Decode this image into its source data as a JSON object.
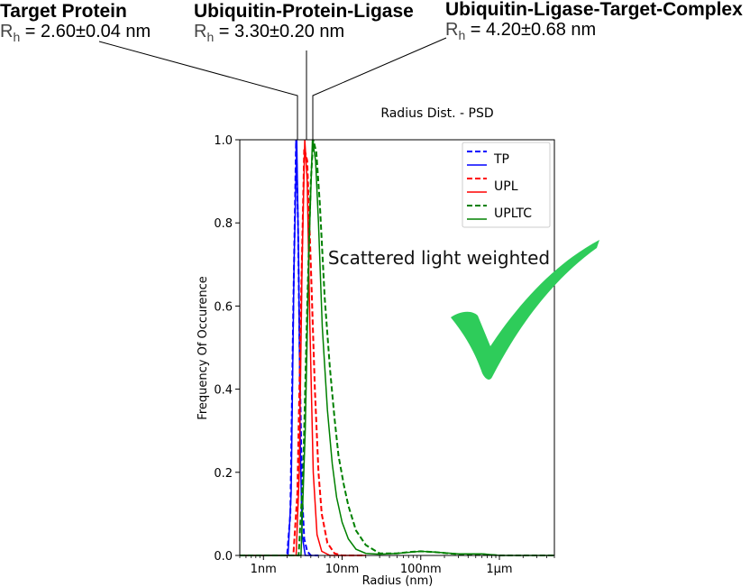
{
  "header_labels": [
    {
      "name": "Target Protein",
      "symbol": "R",
      "subscript": "h",
      "value": " = 2.60±0.04 nm"
    },
    {
      "name": "Ubiquitin-Protein-Ligase",
      "symbol": "R",
      "subscript": "h",
      "value": " = 3.30±0.20 nm"
    },
    {
      "name": "Ubiquitin-Ligase-Target-Complex",
      "symbol": "R",
      "subscript": "h",
      "value": " = 4.20±0.68 nm"
    }
  ],
  "colors": {
    "TP": "#0000ff",
    "UPL": "#ff0000",
    "UPLTC": "#008000",
    "check": "#2ecc5a"
  },
  "chart_data": {
    "type": "line",
    "title": "Radius Dist. - PSD",
    "xlabel": "Radius (nm)",
    "ylabel": "Frequency Of Occurence",
    "x_scale": "log",
    "xlim": [
      0.5,
      5000
    ],
    "ylim": [
      0,
      1.0
    ],
    "x_ticks": [
      {
        "value": 1,
        "label": "1nm"
      },
      {
        "value": 10,
        "label": "10nm"
      },
      {
        "value": 100,
        "label": "100nm"
      },
      {
        "value": 1000,
        "label": "1µm"
      }
    ],
    "y_ticks": [
      {
        "value": 0.0,
        "label": "0.0"
      },
      {
        "value": 0.2,
        "label": "0.2"
      },
      {
        "value": 0.4,
        "label": "0.4"
      },
      {
        "value": 0.6,
        "label": "0.6"
      },
      {
        "value": 0.8,
        "label": "0.8"
      },
      {
        "value": 1.0,
        "label": "1.0"
      }
    ],
    "legend_position": "top-right",
    "annotation": "Scattered light weighted",
    "series": [
      {
        "name": "TP",
        "style": "dashed",
        "color": "#0000ff",
        "x": [
          0.5,
          2.0,
          2.2,
          2.4,
          2.6,
          2.75,
          2.9,
          3.1,
          3.3,
          3.6,
          4.0,
          5.0
        ],
        "y": [
          0,
          0,
          0.1,
          0.6,
          1.0,
          0.8,
          0.45,
          0.15,
          0.04,
          0.01,
          0,
          0
        ]
      },
      {
        "name": "TP",
        "style": "solid",
        "color": "#0000ff",
        "x": [
          0.5,
          2.05,
          2.25,
          2.45,
          2.65,
          2.8,
          2.95,
          3.1,
          3.4,
          5.0
        ],
        "y": [
          0,
          0,
          0.15,
          0.7,
          1.0,
          0.7,
          0.25,
          0.05,
          0,
          0
        ]
      },
      {
        "name": "UPL",
        "style": "dashed",
        "color": "#ff0000",
        "x": [
          0.5,
          2.4,
          2.7,
          3.0,
          3.3,
          3.6,
          4.0,
          4.5,
          5.0,
          5.5,
          6.5,
          8.0,
          10.0,
          20.0
        ],
        "y": [
          0,
          0,
          0.15,
          0.6,
          0.98,
          0.95,
          0.7,
          0.4,
          0.2,
          0.1,
          0.03,
          0.005,
          0,
          0
        ]
      },
      {
        "name": "UPL",
        "style": "solid",
        "color": "#ff0000",
        "x": [
          0.5,
          2.6,
          2.85,
          3.1,
          3.35,
          3.6,
          3.9,
          4.3,
          4.8,
          5.5,
          7.0,
          20.0
        ],
        "y": [
          0,
          0,
          0.2,
          0.7,
          1.0,
          0.9,
          0.55,
          0.2,
          0.05,
          0.01,
          0,
          0
        ]
      },
      {
        "name": "UPLTC",
        "style": "dashed",
        "color": "#008000",
        "x": [
          0.5,
          2.8,
          3.2,
          3.6,
          4.0,
          4.3,
          4.7,
          5.2,
          6.0,
          7.0,
          8.0,
          9.0,
          10.5,
          12.0,
          15.0,
          20.0,
          30.0,
          50.0,
          70.0,
          100.0,
          150.0,
          300.0,
          600.0,
          1000.0,
          5000.0
        ],
        "y": [
          0,
          0,
          0.2,
          0.6,
          0.9,
          1.0,
          0.97,
          0.85,
          0.62,
          0.45,
          0.33,
          0.24,
          0.17,
          0.12,
          0.06,
          0.025,
          0.005,
          0.005,
          0.008,
          0.01,
          0.008,
          0.003,
          0.003,
          0,
          0
        ]
      },
      {
        "name": "UPLTC",
        "style": "solid",
        "color": "#008000",
        "x": [
          0.5,
          3.0,
          3.4,
          3.8,
          4.2,
          4.6,
          5.0,
          5.6,
          6.5,
          7.5,
          8.5,
          10.0,
          12.0,
          15.0,
          20.0,
          30.0,
          50.0,
          100.0,
          150.0,
          300.0,
          600.0,
          1000.0,
          5000.0
        ],
        "y": [
          0,
          0,
          0.3,
          0.75,
          1.0,
          0.95,
          0.8,
          0.55,
          0.35,
          0.22,
          0.14,
          0.08,
          0.04,
          0.015,
          0.005,
          0.003,
          0.005,
          0.01,
          0.008,
          0.004,
          0.004,
          0,
          0
        ]
      }
    ]
  }
}
